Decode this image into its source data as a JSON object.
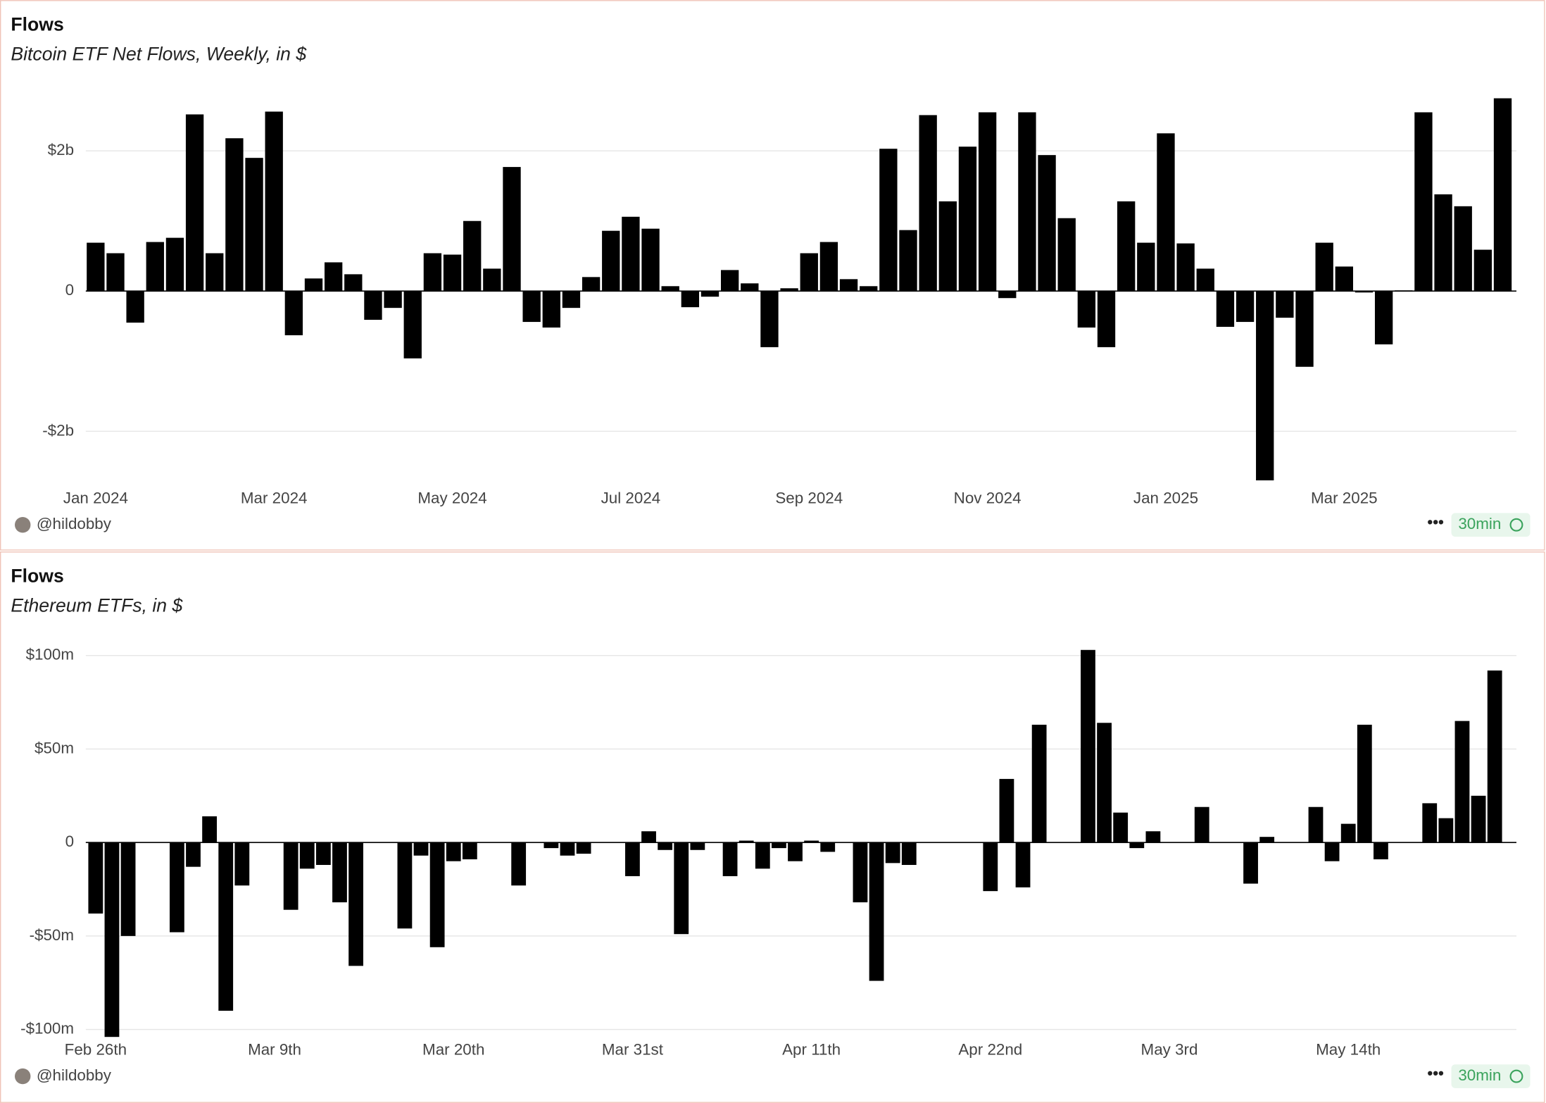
{
  "chart_data": [
    {
      "type": "bar",
      "title": "Flows",
      "subtitle": "Bitcoin ETF Net Flows, Weekly, in $",
      "categories": [
        "Jan 2024",
        null,
        null,
        null,
        null,
        null,
        null,
        null,
        null,
        "Mar 2024",
        null,
        null,
        null,
        null,
        null,
        null,
        null,
        null,
        "May 2024",
        null,
        null,
        null,
        null,
        null,
        null,
        null,
        null,
        "Jul 2024",
        null,
        null,
        null,
        null,
        null,
        null,
        null,
        null,
        "Sep 2024",
        null,
        null,
        null,
        null,
        null,
        null,
        null,
        null,
        "Nov 2024",
        null,
        null,
        null,
        null,
        null,
        null,
        null,
        null,
        "Jan 2025",
        null,
        null,
        null,
        null,
        null,
        null,
        null,
        null,
        "Mar 2025",
        null,
        null,
        null,
        null,
        null,
        null,
        null,
        null
      ],
      "values": [
        0.69,
        0.54,
        -0.45,
        0.7,
        0.76,
        2.52,
        0.54,
        2.18,
        1.9,
        2.56,
        -0.63,
        0.18,
        0.41,
        0.24,
        -0.41,
        -0.24,
        -0.96,
        0.54,
        0.52,
        1.0,
        0.32,
        1.77,
        -0.44,
        -0.52,
        -0.24,
        0.2,
        0.86,
        1.06,
        0.89,
        0.07,
        -0.23,
        -0.08,
        0.3,
        0.11,
        -0.8,
        0.04,
        0.54,
        0.7,
        0.17,
        0.07,
        2.03,
        0.87,
        2.51,
        1.28,
        2.06,
        2.55,
        -0.1,
        2.55,
        1.94,
        1.04,
        -0.52,
        -0.8,
        1.28,
        0.69,
        2.25,
        0.68,
        0.32,
        -0.51,
        -0.44,
        -2.7,
        -0.38,
        -1.08,
        0.69,
        0.35,
        -0.02,
        -0.76,
        0.01,
        2.55,
        1.38,
        1.21,
        0.59,
        2.75
      ],
      "color": "#000000",
      "ylim": [
        -2.8,
        2.8
      ],
      "yticks": [
        {
          "value": -2,
          "label": "-$2b"
        },
        0,
        {
          "value": 2,
          "label": "$2b"
        }
      ],
      "grid": true,
      "author": "@hildobby",
      "refresh": "30min"
    },
    {
      "type": "bar",
      "title": "Flows",
      "subtitle": "Ethereum ETFs, in $",
      "categories": [
        "Feb 26th",
        null,
        null,
        null,
        null,
        null,
        null,
        null,
        null,
        null,
        null,
        "Mar 9th",
        null,
        null,
        null,
        null,
        null,
        null,
        null,
        null,
        null,
        null,
        "Mar 20th",
        null,
        null,
        null,
        null,
        null,
        null,
        null,
        null,
        null,
        null,
        "Mar 31st",
        null,
        null,
        null,
        null,
        null,
        null,
        null,
        null,
        null,
        null,
        "Apr 11th",
        null,
        null,
        null,
        null,
        null,
        null,
        null,
        null,
        null,
        null,
        "Apr 22nd",
        null,
        null,
        null,
        null,
        null,
        null,
        null,
        null,
        null,
        null,
        "May 3rd",
        null,
        null,
        null,
        null,
        null,
        null,
        null,
        null,
        null,
        null,
        "May 14th",
        null,
        null,
        null,
        null,
        null,
        null,
        null,
        null,
        null
      ],
      "values": [
        -38,
        -104,
        -50,
        null,
        null,
        -48,
        -13,
        14,
        -90,
        -23,
        null,
        null,
        -36,
        -14,
        -12,
        -32,
        -66,
        null,
        null,
        -46,
        -7,
        -56,
        -10,
        -9,
        null,
        null,
        -23,
        null,
        -3,
        -7,
        -6,
        null,
        null,
        -18,
        6,
        -4,
        -49,
        -4,
        null,
        -18,
        1,
        -14,
        -3,
        -10,
        1,
        -5,
        null,
        -32,
        -74,
        -11,
        -12,
        null,
        null,
        null,
        null,
        -26,
        34,
        -24,
        63,
        null,
        null,
        103,
        64,
        16,
        -3,
        6,
        null,
        null,
        19,
        null,
        null,
        -22,
        3,
        null,
        null,
        19,
        -10,
        10,
        63,
        -9,
        null,
        null,
        21,
        13,
        65,
        25,
        92
      ],
      "color": "#000000",
      "ylim": [
        -105,
        105
      ],
      "yticks": [
        {
          "value": -100,
          "label": "-$100m"
        },
        {
          "value": -50,
          "label": "-$50m"
        },
        0,
        {
          "value": 50,
          "label": "$50m"
        },
        {
          "value": 100,
          "label": "$100m"
        }
      ],
      "grid": true,
      "author": "@hildobby",
      "refresh": "30min"
    }
  ]
}
